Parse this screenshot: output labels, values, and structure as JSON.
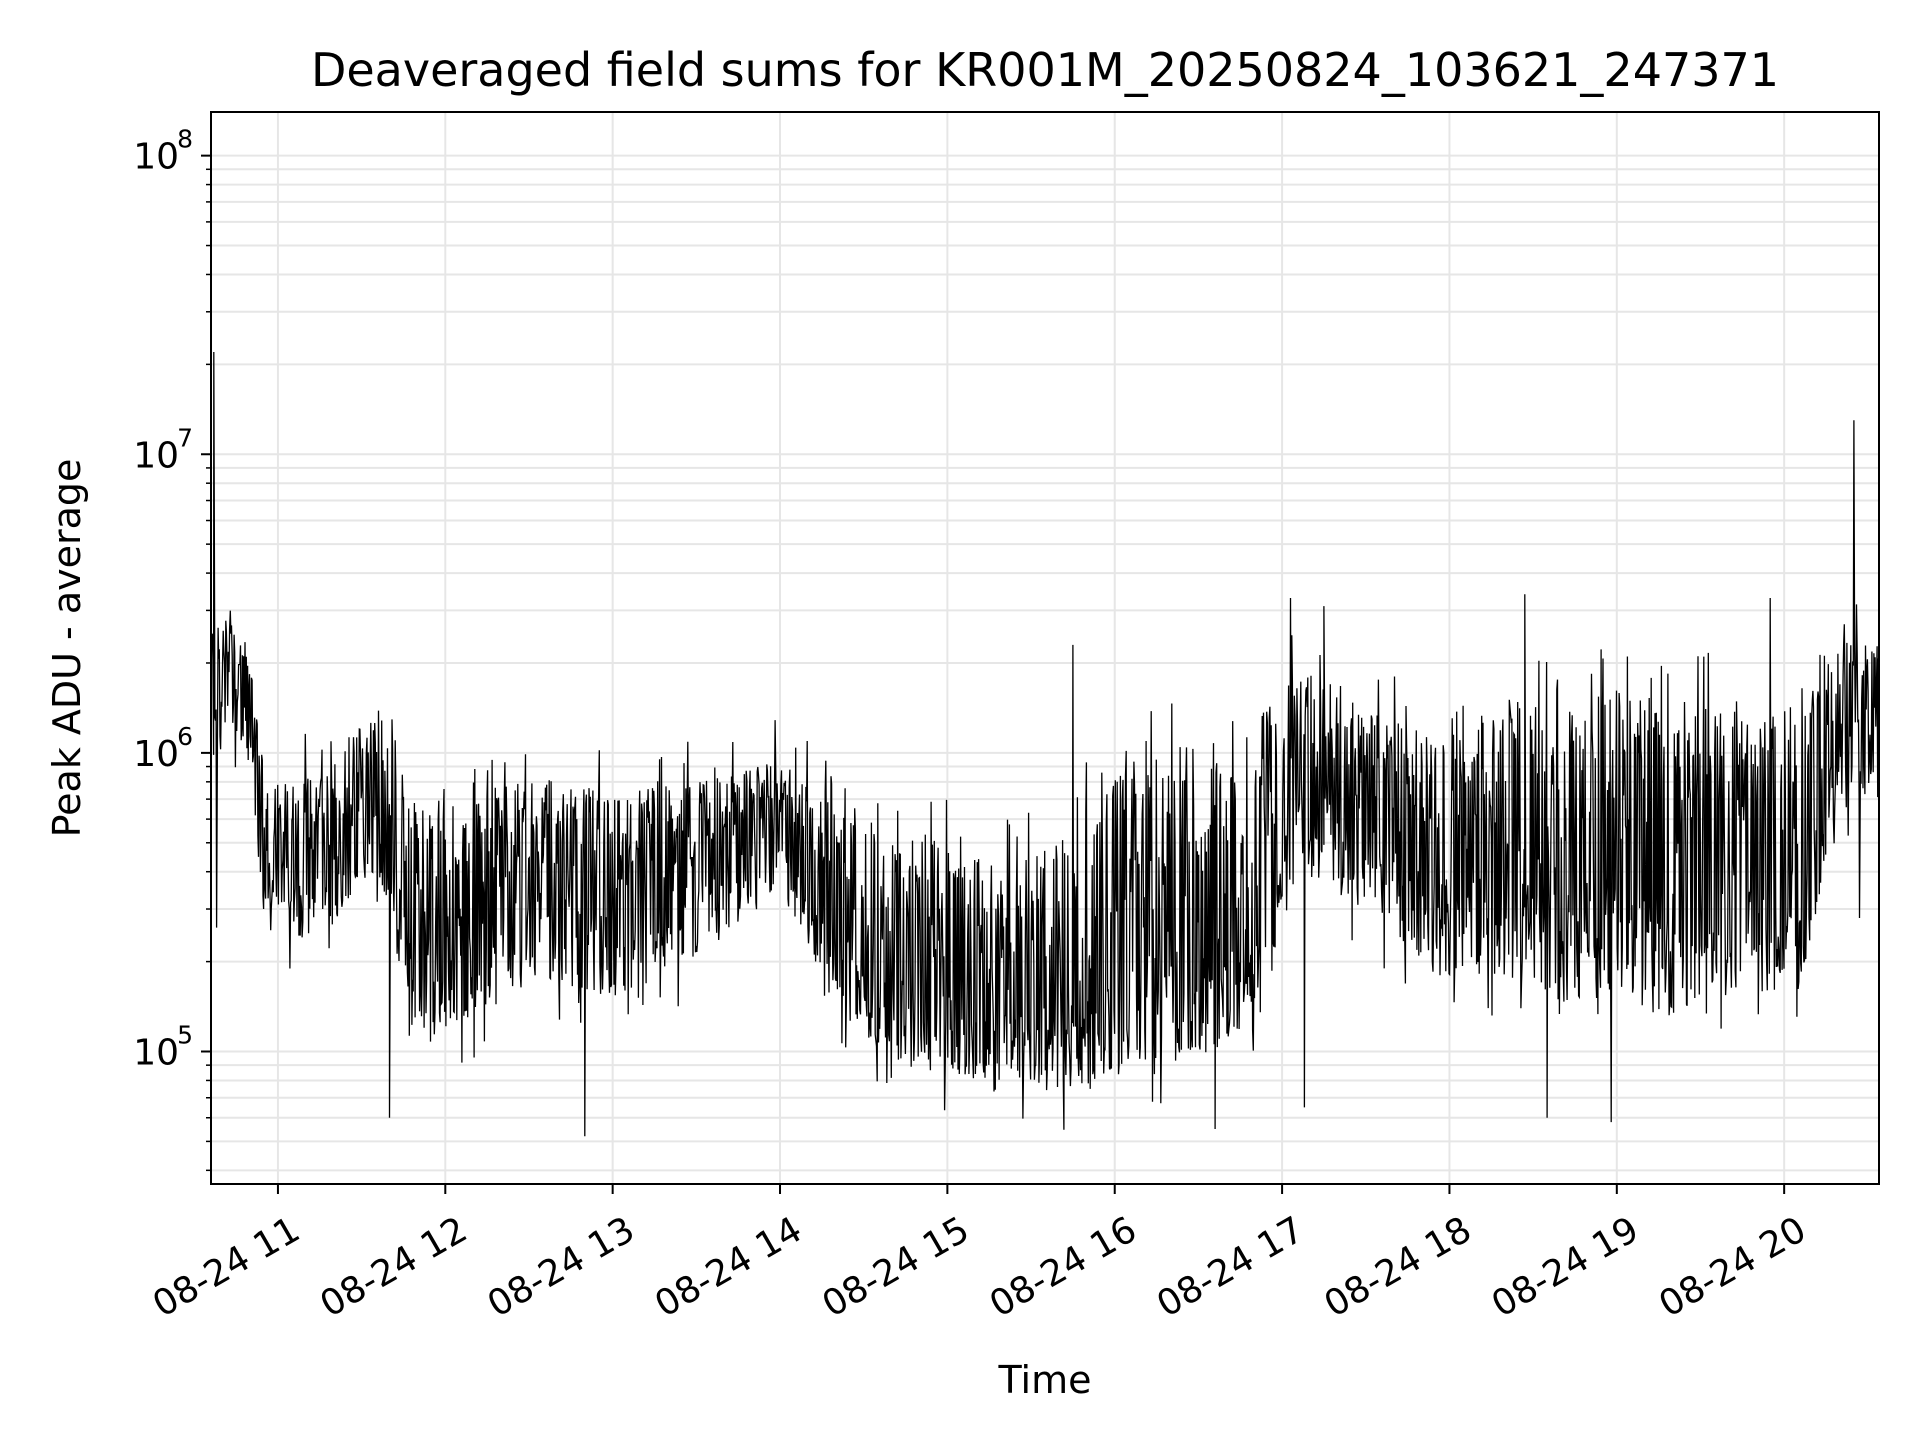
{
  "chart_data": {
    "type": "line",
    "title": "Deaveraged field sums for KR001M_20250824_103621_247371",
    "xlabel": "Time",
    "ylabel": "Peak ADU - average",
    "y_scale": "log",
    "grid": true,
    "legend": "none",
    "line_color": "#000000",
    "grid_color": "#e6e6e6",
    "xlim": [
      "2025-08-24 10:36",
      "2025-08-24 20:34"
    ],
    "ylim": [
      36000,
      140000000
    ],
    "x_ticks": [
      "2025-08-24 11:00",
      "2025-08-24 12:00",
      "2025-08-24 13:00",
      "2025-08-24 14:00",
      "2025-08-24 15:00",
      "2025-08-24 16:00",
      "2025-08-24 17:00",
      "2025-08-24 18:00",
      "2025-08-24 19:00",
      "2025-08-24 20:00"
    ],
    "x_tick_labels": [
      "08-24 11",
      "08-24 12",
      "08-24 13",
      "08-24 14",
      "08-24 15",
      "08-24 16",
      "08-24 17",
      "08-24 18",
      "08-24 19",
      "08-24 20"
    ],
    "y_ticks": [
      {
        "value": 100000,
        "base": "10",
        "exp": "5"
      },
      {
        "value": 1000000,
        "base": "10",
        "exp": "6"
      },
      {
        "value": 10000000,
        "base": "10",
        "exp": "7"
      },
      {
        "value": 100000000,
        "base": "10",
        "exp": "8"
      }
    ],
    "series": [
      {
        "profile": {
          "time": [
            "2025-08-24 10:36",
            "2025-08-24 10:40",
            "2025-08-24 10:45",
            "2025-08-24 10:50",
            "2025-08-24 10:55",
            "2025-08-24 11:05",
            "2025-08-24 11:20",
            "2025-08-24 11:35",
            "2025-08-24 11:50",
            "2025-08-24 12:05",
            "2025-08-24 12:30",
            "2025-08-24 13:00",
            "2025-08-24 13:30",
            "2025-08-24 14:00",
            "2025-08-24 14:20",
            "2025-08-24 14:40",
            "2025-08-24 15:00",
            "2025-08-24 15:20",
            "2025-08-24 15:40",
            "2025-08-24 16:00",
            "2025-08-24 16:25",
            "2025-08-24 16:50",
            "2025-08-24 17:05",
            "2025-08-24 17:30",
            "2025-08-24 17:55",
            "2025-08-24 18:20",
            "2025-08-24 18:45",
            "2025-08-24 19:00",
            "2025-08-24 19:20",
            "2025-08-24 19:45",
            "2025-08-24 20:05",
            "2025-08-24 20:20",
            "2025-08-24 20:34"
          ],
          "median": [
            1800000,
            2000000,
            1800000,
            1300000,
            500000,
            420000,
            450000,
            700000,
            200000,
            250000,
            380000,
            320000,
            420000,
            600000,
            280000,
            200000,
            170000,
            140000,
            130000,
            170000,
            300000,
            250000,
            900000,
            600000,
            400000,
            450000,
            350000,
            500000,
            300000,
            420000,
            380000,
            1400000,
            1300000
          ],
          "low": [
            800000,
            1200000,
            1100000,
            900000,
            280000,
            230000,
            250000,
            400000,
            110000,
            120000,
            180000,
            150000,
            200000,
            350000,
            140000,
            90000,
            85000,
            80000,
            75000,
            80000,
            100000,
            100000,
            400000,
            300000,
            180000,
            180000,
            140000,
            150000,
            130000,
            160000,
            150000,
            700000,
            700000
          ],
          "high": [
            2600000,
            2800000,
            2700000,
            2200000,
            850000,
            800000,
            900000,
            1500000,
            650000,
            750000,
            800000,
            750000,
            800000,
            950000,
            650000,
            550000,
            500000,
            420000,
            500000,
            900000,
            1100000,
            1100000,
            2000000,
            1500000,
            1100000,
            1500000,
            1400000,
            1700000,
            1500000,
            1600000,
            1600000,
            2400000,
            2300000
          ]
        },
        "spikes": [
          {
            "time": "2025-08-24 10:37",
            "value": 22000000
          },
          {
            "time": "2025-08-24 10:38",
            "value": 260000
          },
          {
            "time": "2025-08-24 11:40",
            "value": 60000
          },
          {
            "time": "2025-08-24 12:50",
            "value": 52000
          },
          {
            "time": "2025-08-24 15:45",
            "value": 2300000
          },
          {
            "time": "2025-08-24 16:36",
            "value": 55000
          },
          {
            "time": "2025-08-24 17:03",
            "value": 3300000
          },
          {
            "time": "2025-08-24 17:08",
            "value": 65000
          },
          {
            "time": "2025-08-24 17:15",
            "value": 3100000
          },
          {
            "time": "2025-08-24 18:27",
            "value": 3400000
          },
          {
            "time": "2025-08-24 18:35",
            "value": 60000
          },
          {
            "time": "2025-08-24 18:58",
            "value": 58000
          },
          {
            "time": "2025-08-24 19:55",
            "value": 3300000
          },
          {
            "time": "2025-08-24 20:25",
            "value": 13000000
          },
          {
            "time": "2025-08-24 20:27",
            "value": 280000
          }
        ]
      }
    ]
  }
}
